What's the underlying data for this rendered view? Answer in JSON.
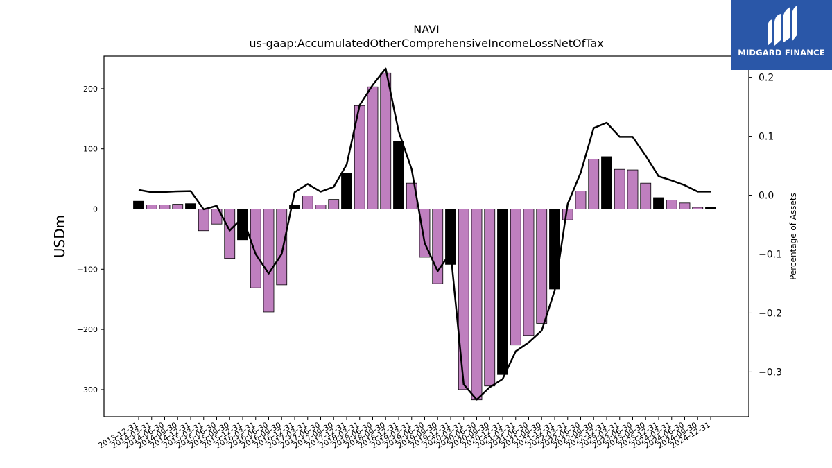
{
  "brand": {
    "name": "MIDGARD FINANCE",
    "bg_color": "#2a57a8"
  },
  "colors": {
    "bar_normal": "#bf7fbf",
    "bar_highlight": "#000000",
    "line": "#000000"
  },
  "chart_data": {
    "type": "bar",
    "title": "NAVI",
    "subtitle": "us-gaap:AccumulatedOtherComprehensiveIncomeLossNetOfTax",
    "ylabel": "USDm",
    "y2label": "Percentage of Assets",
    "ylim": [
      -345,
      254
    ],
    "y2lim": [
      -0.376,
      0.236
    ],
    "yticks": [
      200,
      100,
      0,
      -100,
      -200,
      -300
    ],
    "ytick_labels": [
      "200",
      "100",
      "0",
      "−100",
      "−200",
      "−300"
    ],
    "y2ticks": [
      0.2,
      0.1,
      0.0,
      -0.1,
      -0.2,
      -0.3
    ],
    "y2tick_labels": [
      "0.2",
      "0.1",
      "0.0",
      "−0.1",
      "−0.2",
      "−0.3"
    ],
    "grid": false,
    "categories": [
      "2013-12-31",
      "2014-03-31",
      "2014-06-30",
      "2014-09-30",
      "2014-12-31",
      "2015-03-31",
      "2015-06-30",
      "2015-09-30",
      "2015-12-31",
      "2016-03-31",
      "2016-06-30",
      "2016-09-30",
      "2016-12-31",
      "2017-03-31",
      "2017-06-30",
      "2017-09-30",
      "2017-12-31",
      "2018-03-31",
      "2018-06-30",
      "2018-09-30",
      "2018-12-31",
      "2019-03-31",
      "2019-06-30",
      "2019-09-30",
      "2019-12-31",
      "2020-03-31",
      "2020-06-30",
      "2020-09-30",
      "2020-12-31",
      "2021-03-31",
      "2021-06-30",
      "2021-09-30",
      "2021-12-31",
      "2022-03-31",
      "2022-06-30",
      "2022-09-30",
      "2022-12-31",
      "2023-03-31",
      "2023-06-30",
      "2023-09-30",
      "2023-12-31",
      "2024-03-31",
      "2024-06-30",
      "2024-09-30",
      "2024-12-31"
    ],
    "series": [
      {
        "kind": "bar",
        "axis": "left",
        "values": [
          13,
          7,
          7,
          8,
          9,
          -36,
          -25,
          -82,
          -51,
          -131,
          -171,
          -126,
          6,
          22,
          7,
          16,
          60,
          172,
          203,
          226,
          112,
          43,
          -80,
          -124,
          -92,
          -300,
          -317,
          -294,
          -275,
          -226,
          -210,
          -190,
          -133,
          -18,
          30,
          83,
          87,
          66,
          65,
          43,
          19,
          15,
          10,
          3,
          3
        ],
        "highlight": [
          true,
          false,
          false,
          false,
          true,
          false,
          false,
          false,
          true,
          false,
          false,
          false,
          true,
          false,
          false,
          false,
          true,
          false,
          false,
          false,
          true,
          false,
          false,
          false,
          true,
          false,
          false,
          false,
          true,
          false,
          false,
          false,
          true,
          false,
          false,
          false,
          true,
          false,
          false,
          false,
          true,
          false,
          false,
          false,
          true
        ]
      },
      {
        "kind": "line",
        "axis": "right",
        "values": [
          0.009,
          0.005,
          0.0055,
          0.0065,
          0.007,
          -0.024,
          -0.018,
          -0.06,
          -0.038,
          -0.1,
          -0.133,
          -0.1,
          0.005,
          0.019,
          0.006,
          0.014,
          0.052,
          0.153,
          0.187,
          0.215,
          0.108,
          0.044,
          -0.081,
          -0.129,
          -0.097,
          -0.321,
          -0.347,
          -0.326,
          -0.312,
          -0.265,
          -0.25,
          -0.23,
          -0.162,
          -0.015,
          0.038,
          0.114,
          0.123,
          0.099,
          0.099,
          0.067,
          0.032,
          0.025,
          0.017,
          0.006,
          0.006
        ]
      }
    ]
  }
}
